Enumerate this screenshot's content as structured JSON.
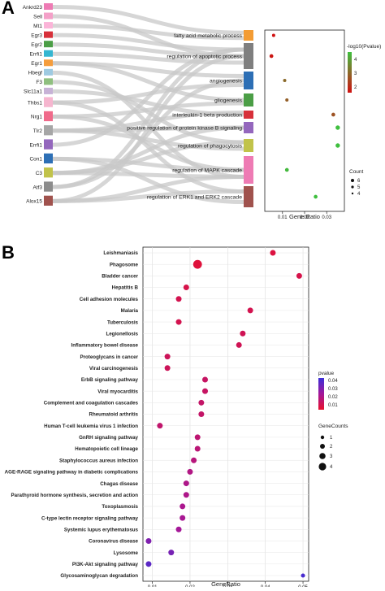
{
  "panels": {
    "a": "A",
    "b": "B"
  },
  "chart_data": [
    {
      "type": "scatter",
      "subtype": "sankey-dot",
      "genes": [
        "Ankrd23",
        "Sell",
        "Mt1",
        "Egr3",
        "Egr2",
        "Errfi1",
        "Egr1",
        "Hbegf",
        "F3",
        "Slc11a1",
        "Thbs1",
        "Nrg1",
        "Tlr2",
        "Errfi1",
        "Con1",
        "C3",
        "Atf3",
        "Alox15"
      ],
      "gene_colors": [
        "#ee7bb4",
        "#f4a0c8",
        "#fbb4d8",
        "#d7303a",
        "#4b9e46",
        "#34b6d1",
        "#f59d3c",
        "#9ecae1",
        "#8fbf7f",
        "#c7b2d6",
        "#f6b6cf",
        "#f06a8a",
        "#a6a6a6",
        "#9467bd",
        "#2d6fb5",
        "#c1c34a",
        "#8c8c8c",
        "#a0524d"
      ],
      "terms": [
        "fatty acid metabolic process",
        "regulation of apoptotic process",
        "angiogenesis",
        "gliogenesis",
        "interleukin-1 beta production",
        "positive regulation of protein kinase B signaling",
        "regulation of phagocytosis",
        "regulation of MAPK cascade",
        "regulation of ERK1 and ERK2 cascade"
      ],
      "term_colors": [
        "#f39c34",
        "#7f7f7f",
        "#2d6fb5",
        "#4b9e46",
        "#d7303a",
        "#9467bd",
        "#c1c34a",
        "#ee7bb4",
        "#a0524d"
      ],
      "gene_ratio": [
        0.006,
        0.005,
        0.011,
        0.012,
        0.033,
        0.035,
        0.035,
        0.012,
        0.025
      ],
      "neg_log10_pvalue": [
        1.4,
        1.6,
        3.0,
        2.8,
        2.6,
        4.6,
        4.6,
        4.4,
        4.7
      ],
      "count": [
        4,
        5,
        4,
        4,
        5,
        6,
        6,
        5,
        5
      ],
      "xlabel": "Gene.Ratio",
      "x_ticks": [
        "0.01",
        "0.02",
        "0.03"
      ],
      "xlim": [
        0.002,
        0.038
      ],
      "color_legend": {
        "title": "-log10(Pvalue)",
        "ticks": [
          "4",
          "3",
          "2"
        ],
        "min": 1.5,
        "max": 4.5
      },
      "size_legend": {
        "title": "Count",
        "ticks": [
          "6",
          "5",
          "4"
        ]
      }
    },
    {
      "type": "scatter",
      "subtype": "dot",
      "categories": [
        "Leishmaniasis",
        "Phagosome",
        "Bladder cancer",
        "Hepatitis B",
        "Cell adhesion molecules",
        "Malaria",
        "Tuberculosis",
        "Legionellosis",
        "Inflammatory bowel disease",
        "Proteoglycans in cancer",
        "Viral carcinogenesis",
        "ErbB signaling pathway",
        "Viral myocarditis",
        "Complement and coagulation cascades",
        "Rheumatoid arthritis",
        "Human T-cell leukemia virus 1 infection",
        "GnRH signaling pathway",
        "Hematopoietic cell lineage",
        "Staphylococcus aureus infection",
        "AGE-RAGE signaling pathway in diabetic complications",
        "Chagas disease",
        "Parathyroid hormone synthesis, secretion and action",
        "Toxoplasmosis",
        "C-type lectin receptor signaling pathway",
        "Systemic lupus erythematosus",
        "Coronavirus disease",
        "Lysosome",
        "PI3K-Akt signaling pathway",
        "Glycosaminoglycan degradation"
      ],
      "gene_ratio": [
        0.042,
        0.022,
        0.049,
        0.019,
        0.017,
        0.036,
        0.017,
        0.034,
        0.033,
        0.014,
        0.014,
        0.024,
        0.024,
        0.023,
        0.023,
        0.012,
        0.022,
        0.022,
        0.021,
        0.02,
        0.019,
        0.019,
        0.018,
        0.018,
        0.017,
        0.009,
        0.015,
        0.009,
        0.05
      ],
      "pvalue": [
        0.004,
        0.003,
        0.006,
        0.006,
        0.007,
        0.007,
        0.007,
        0.008,
        0.008,
        0.009,
        0.009,
        0.011,
        0.011,
        0.012,
        0.012,
        0.013,
        0.014,
        0.015,
        0.016,
        0.018,
        0.019,
        0.019,
        0.02,
        0.021,
        0.022,
        0.03,
        0.032,
        0.038,
        0.042
      ],
      "gene_counts": [
        2,
        4,
        2,
        2,
        2,
        2,
        2,
        2,
        2,
        2,
        2,
        2,
        2,
        2,
        2,
        2,
        2,
        2,
        2,
        2,
        2,
        2,
        2,
        2,
        2,
        2,
        2,
        2,
        1
      ],
      "xlabel": "GeneRatio",
      "x_ticks": [
        "0.01",
        "0.02",
        "0.03",
        "0.04",
        "0.05"
      ],
      "xlim": [
        0.0075,
        0.0515
      ],
      "color_legend": {
        "title": "pvalue",
        "ticks": [
          "0.04",
          "0.03",
          "0.02",
          "0.01"
        ],
        "min": 0.0,
        "max": 0.045,
        "low_color": "#e8112d",
        "high_color": "#3b2fd8"
      },
      "size_legend": {
        "title": "GeneCounts",
        "ticks": [
          "1",
          "2",
          "3",
          "4"
        ]
      },
      "grid": true
    }
  ]
}
